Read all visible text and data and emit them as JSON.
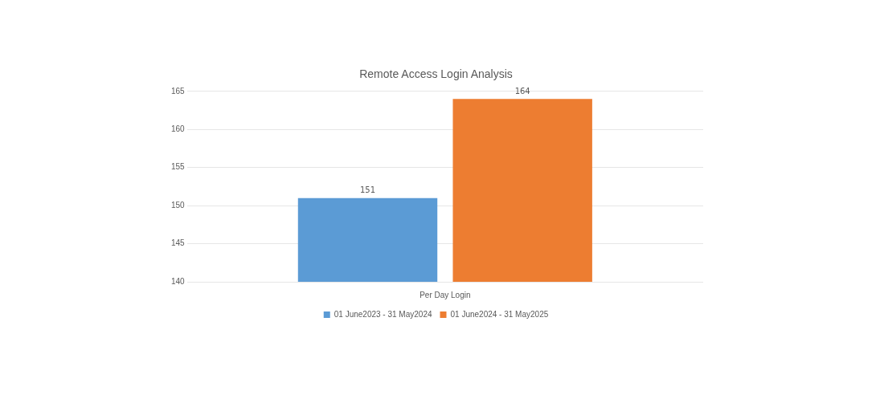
{
  "chart_data": {
    "type": "bar",
    "title": "Remote Access Login Analysis",
    "categories": [
      "Per Day Login"
    ],
    "series": [
      {
        "name": "01 June2023 - 31 May2024",
        "color": "#5b9bd5",
        "values": [
          151
        ]
      },
      {
        "name": "01 June2024 - 31 May2025",
        "color": "#ed7d31",
        "values": [
          164
        ]
      }
    ],
    "ylim": [
      140,
      165
    ],
    "yticks": [
      140,
      145,
      150,
      155,
      160,
      165
    ],
    "grid": "y",
    "legend": "bottom",
    "data_labels": true
  }
}
